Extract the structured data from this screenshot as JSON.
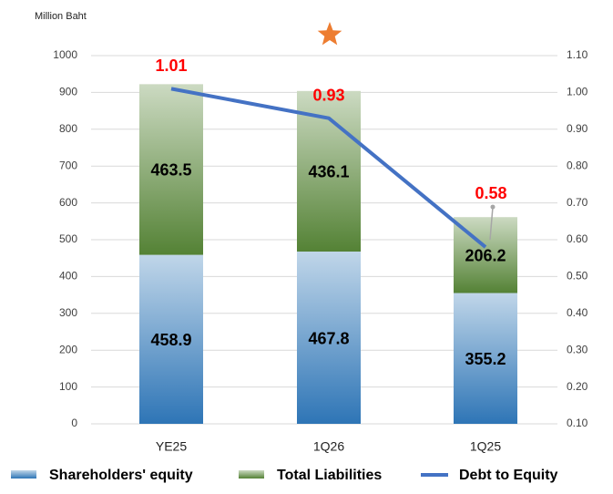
{
  "chart_data": {
    "type": "bar",
    "stacked": true,
    "y_axis_title": "Million Baht",
    "categories": [
      "YE25",
      "1Q26",
      "1Q25"
    ],
    "series": [
      {
        "name": "Shareholders' equity",
        "color": "#2e75b6",
        "type": "bar",
        "values": [
          458.9,
          467.8,
          355.2
        ]
      },
      {
        "name": "Total Liabilities",
        "color": "#548235",
        "type": "bar",
        "values": [
          463.5,
          436.1,
          206.2
        ]
      },
      {
        "name": "Debt to Equity",
        "color": "#4472c4",
        "type": "line",
        "axis": "y2",
        "label_color": "#ff0000",
        "values": [
          1.01,
          0.93,
          0.58
        ]
      }
    ],
    "ylim": [
      0,
      1000
    ],
    "yticks": [
      0,
      100,
      200,
      300,
      400,
      500,
      600,
      700,
      800,
      900,
      1000
    ],
    "y2lim": [
      0.1,
      1.1
    ],
    "y2ticks": [
      {
        "value": 0.1,
        "label": "0.10"
      },
      {
        "value": 0.2,
        "label": "0.20"
      },
      {
        "value": 0.3,
        "label": "0.30"
      },
      {
        "value": 0.4,
        "label": "0.40"
      },
      {
        "value": 0.5,
        "label": "0.50"
      },
      {
        "value": 0.6,
        "label": "0.60"
      },
      {
        "value": 0.7,
        "label": "0.70"
      },
      {
        "value": 0.8,
        "label": "0.80"
      },
      {
        "value": 0.9,
        "label": "0.90"
      },
      {
        "value": 1.0,
        "label": "1.00"
      },
      {
        "value": 1.1,
        "label": "1.10"
      }
    ],
    "grid": true,
    "legend": "bottom"
  }
}
